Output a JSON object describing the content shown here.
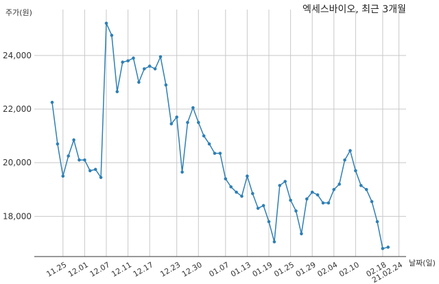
{
  "chart_data": {
    "type": "line",
    "title": "엑세스바이오, 최근 3개월",
    "ylabel": "주가(원)",
    "xlabel": "날짜(일)",
    "ylim": [
      16500,
      25300
    ],
    "yticks": [
      18000,
      20000,
      22000,
      24000
    ],
    "ytick_labels": [
      "18,000",
      "20,000",
      "22,000",
      "24,000"
    ],
    "xtick_labels": [
      "11.25",
      "12.01",
      "12.07",
      "12.11",
      "12.17",
      "12.23",
      "12.30",
      "01.07",
      "01.13",
      "01.19",
      "01.25",
      "01.29",
      "02.04",
      "02.10",
      "02.18",
      "21.02.24"
    ],
    "xtick_index": [
      2,
      6,
      10,
      14,
      18,
      23,
      27,
      32,
      36,
      40,
      44,
      48,
      52,
      56,
      61,
      64
    ],
    "grid": true,
    "line_color": "#2e7fb4",
    "series": [
      {
        "values": [
          22250,
          20700,
          19500,
          20250,
          20850,
          20100,
          20100,
          19700,
          19750,
          19450,
          25200,
          24750,
          22650,
          23750,
          23800,
          23900,
          23000,
          23500,
          23600,
          23500,
          23950,
          22900,
          21450,
          21700,
          19650,
          21500,
          22050,
          21500,
          21000,
          20700,
          20350,
          20350,
          19400,
          19100,
          18900,
          18750,
          19500,
          18850,
          18300,
          18400,
          17800,
          17050,
          19150,
          19300,
          18600,
          18200,
          17350,
          18650,
          18900,
          18800,
          18500,
          18500,
          19000,
          19200,
          20100,
          20450,
          19700,
          19150,
          19000,
          18550,
          17800,
          16800,
          16850
        ]
      }
    ]
  }
}
